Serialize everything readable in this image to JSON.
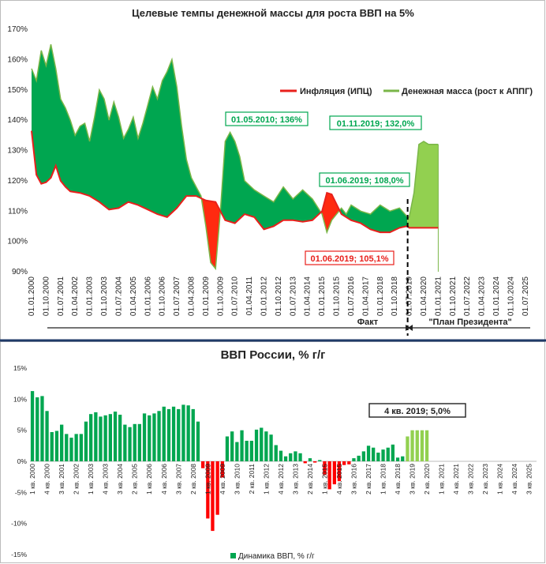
{
  "chart_data": [
    {
      "type": "area",
      "title": "Целевые темпы денежной массы для роста ВВП на 5%",
      "y_ticks": [
        "90%",
        "100%",
        "110%",
        "120%",
        "130%",
        "140%",
        "150%",
        "160%",
        "170%"
      ],
      "ylim": [
        90,
        170
      ],
      "x_ticks": [
        "01.01.2000",
        "01.10.2000",
        "01.07.2001",
        "01.04.2002",
        "01.01.2003",
        "01.10.2003",
        "01.07.2004",
        "01.04.2005",
        "01.01.2006",
        "01.10.2006",
        "01.07.2007",
        "01.04.2008",
        "01.01.2009",
        "01.10.2009",
        "01.07.2010",
        "01.04.2011",
        "01.01.2012",
        "01.10.2012",
        "01.07.2013",
        "01.04.2014",
        "01.01.2015",
        "01.10.2015",
        "01.07.2016",
        "01.04.2017",
        "01.01.2018",
        "01.10.2018",
        "01.07.2019",
        "01.04.2020",
        "01.01.2021",
        "01.10.2021",
        "01.07.2022",
        "01.04.2023",
        "01.01.2024",
        "01.10.2024",
        "01.07.2025"
      ],
      "series": [
        {
          "name": "Инфляция (ИПЦ)",
          "color": "#e8201c",
          "x": [
            2000.0,
            2000.25,
            2000.5,
            2000.75,
            2001.0,
            2001.25,
            2001.5,
            2001.75,
            2002.0,
            2002.5,
            2003.0,
            2003.5,
            2004.0,
            2004.5,
            2005.0,
            2005.5,
            2006.0,
            2006.5,
            2007.0,
            2007.5,
            2008.0,
            2008.5,
            2009.0,
            2009.5,
            2010.0,
            2010.5,
            2011.0,
            2011.5,
            2012.0,
            2012.5,
            2013.0,
            2013.5,
            2014.0,
            2014.5,
            2015.0,
            2015.25,
            2015.5,
            2016.0,
            2016.5,
            2017.0,
            2017.5,
            2018.0,
            2018.5,
            2019.0,
            2019.42,
            2019.5,
            2020.0,
            2020.5,
            2021.0
          ],
          "values": [
            136.5,
            122,
            119,
            119.5,
            121,
            125,
            120,
            118,
            116.5,
            116,
            115,
            113,
            110.5,
            111,
            113,
            112,
            110.5,
            109,
            108,
            111,
            115,
            115,
            113.5,
            113,
            107,
            106,
            109,
            108,
            104,
            105,
            107,
            107,
            106.5,
            107,
            110,
            116,
            115.5,
            109,
            107,
            106,
            104,
            103,
            103,
            104.5,
            105.1,
            104.5,
            104.5,
            104.5,
            104.5
          ]
        },
        {
          "name": "Денежная масса (рост к АППГ)",
          "color": "#7ab648",
          "x": [
            2000.0,
            2000.25,
            2000.5,
            2000.75,
            2001.0,
            2001.25,
            2001.5,
            2001.75,
            2002.0,
            2002.25,
            2002.5,
            2002.75,
            2003.0,
            2003.25,
            2003.5,
            2003.75,
            2004.0,
            2004.25,
            2004.5,
            2004.75,
            2005.0,
            2005.25,
            2005.5,
            2005.75,
            2006.0,
            2006.25,
            2006.5,
            2006.75,
            2007.0,
            2007.25,
            2007.5,
            2007.75,
            2008.0,
            2008.25,
            2008.5,
            2008.75,
            2009.0,
            2009.25,
            2009.5,
            2009.75,
            2010.0,
            2010.25,
            2010.5,
            2010.75,
            2011.0,
            2011.5,
            2012.0,
            2012.5,
            2013.0,
            2013.5,
            2014.0,
            2014.5,
            2015.0,
            2015.25,
            2015.5,
            2016.0,
            2016.25,
            2016.5,
            2017.0,
            2017.5,
            2018.0,
            2018.5,
            2019.0,
            2019.42,
            2019.5,
            2019.75,
            2020.0,
            2020.25,
            2020.5,
            2020.75,
            2021.0
          ],
          "values": [
            157,
            153,
            163,
            158,
            165,
            157,
            147,
            144,
            140,
            135,
            138,
            139,
            133,
            141,
            150,
            147,
            140,
            146,
            141,
            134,
            137,
            141,
            134,
            139,
            145,
            151,
            147,
            153,
            156,
            160,
            151,
            138,
            127,
            121,
            118,
            115,
            105,
            93,
            91,
            110,
            133,
            136,
            133,
            128,
            120,
            117,
            115,
            113,
            118,
            114,
            117,
            114,
            109,
            103,
            107,
            111,
            109,
            112,
            110,
            109,
            112,
            110,
            111,
            108,
            108,
            116,
            132,
            133,
            132,
            132,
            132
          ]
        }
      ],
      "annotations": [
        {
          "text": "01.05.2010; 136%",
          "color": "#00a650"
        },
        {
          "text": "01.11.2019; 132,0%",
          "color": "#00a650"
        },
        {
          "text": "01.06.2019; 108,0%",
          "color": "#00a650"
        },
        {
          "text": "01.06.2019; 105,1%",
          "color": "#e8201c"
        }
      ],
      "legend_position": "top-right",
      "fact_label": "Факт",
      "plan_label": "\"План Президента\""
    },
    {
      "type": "bar",
      "title": "ВВП России, % г/г",
      "series_name": "Динамика ВВП, % г/г",
      "ylim": [
        -15,
        15
      ],
      "y_ticks": [
        "-15%",
        "-10%",
        "-5%",
        "0%",
        "5%",
        "10%",
        "15%"
      ],
      "x_ticks": [
        "1 кв. 2000",
        "4 кв. 2000",
        "3 кв. 2001",
        "2 кв. 2002",
        "1 кв. 2003",
        "4 кв. 2003",
        "3 кв. 2004",
        "2 кв. 2005",
        "1 кв. 2006",
        "4 кв. 2006",
        "3 кв. 2007",
        "2 кв. 2008",
        "1 кв. 2009",
        "4 кв. 2009",
        "3 кв. 2010",
        "2 кв. 2011",
        "1 кв. 2012",
        "4 кв. 2012",
        "3 кв. 2013",
        "2 кв. 2014",
        "1 кв. 2015",
        "4 кв. 2015",
        "3 кв. 2016",
        "2 кв. 2017",
        "1 кв. 2018",
        "4 кв. 2018",
        "3 кв. 2019",
        "2 кв. 2020",
        "1 кв. 2021",
        "4 кв. 2021",
        "3 кв. 2022",
        "2 кв. 2023",
        "1 кв. 2024",
        "4 кв. 2024",
        "3 кв. 2025"
      ],
      "values": [
        11.3,
        10.3,
        10.5,
        8.1,
        4.7,
        4.9,
        5.9,
        4.4,
        3.8,
        4.4,
        4.4,
        6.4,
        7.6,
        7.9,
        7.2,
        7.4,
        7.6,
        8.0,
        7.5,
        5.9,
        5.5,
        6.0,
        6.0,
        7.7,
        7.4,
        7.7,
        8.1,
        8.8,
        8.4,
        8.8,
        8.4,
        9.1,
        9.0,
        8.4,
        6.4,
        -1.1,
        -9.2,
        -11.2,
        -8.6,
        -2.6,
        4.0,
        4.8,
        3.1,
        5.0,
        3.3,
        3.3,
        5.1,
        5.4,
        4.8,
        4.3,
        2.6,
        1.7,
        0.8,
        1.3,
        1.6,
        1.3,
        -0.3,
        0.5,
        -0.2,
        0.2,
        -2.2,
        -4.5,
        -3.7,
        -3.2,
        -0.6,
        -0.5,
        0.5,
        0.9,
        1.6,
        2.5,
        2.2,
        1.4,
        1.9,
        2.2,
        2.7,
        0.6,
        0.8,
        4.0,
        5.0,
        5.0,
        5.0,
        5.0
      ],
      "highlight": {
        "text": "4 кв. 2019; 5,0%"
      }
    }
  ]
}
